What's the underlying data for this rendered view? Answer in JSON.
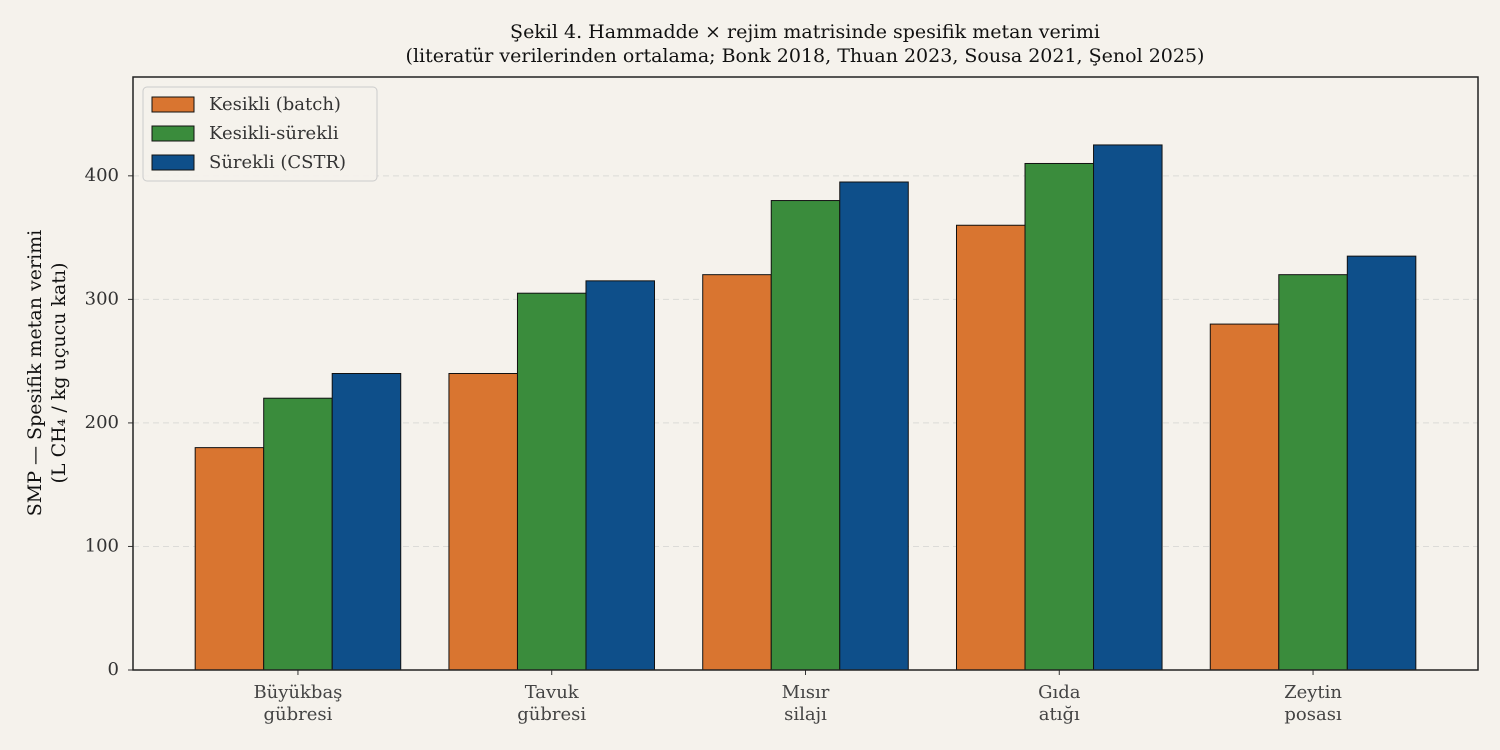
{
  "chart_data": {
    "type": "bar",
    "title": "Şekil 4. Hammadde × rejim matrisinde spesifik metan verimi\n(literatür verilerinden ortalama; Bonk 2018, Thuan 2023, Sousa 2021, Şenol 2025)",
    "y_label": "SMP — Spesifik metan verimi\n(L CH₄ / kg uçucu katı)",
    "categories": [
      "Büyükbaş\ngübresi",
      "Tavuk\ngübresi",
      "Mısır\nsilajı",
      "Gıda\natığı",
      "Zeytin\nposası"
    ],
    "series": [
      {
        "name": "Kesikli (batch)",
        "color": "#d97530",
        "values": [
          180,
          240,
          320,
          360,
          280
        ]
      },
      {
        "name": "Kesikli-sürekli",
        "color": "#3a8c3c",
        "values": [
          220,
          305,
          380,
          410,
          320
        ]
      },
      {
        "name": "Sürekli (CSTR)",
        "color": "#0e4f8a",
        "values": [
          240,
          315,
          395,
          425,
          335
        ]
      }
    ],
    "ylim": [
      0,
      480
    ],
    "yticks": [
      0,
      100,
      200,
      300,
      400
    ],
    "grid": true,
    "legend": "upper-left"
  }
}
